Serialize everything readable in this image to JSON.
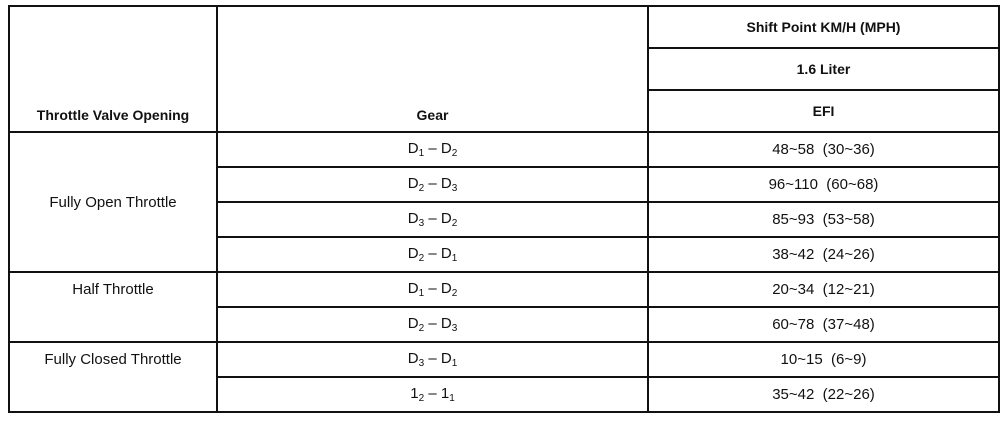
{
  "header": {
    "throttle": "Throttle Valve Opening",
    "gear": "Gear",
    "shift_point": "Shift Point KM/H (MPH)",
    "engine": "1.6 Liter",
    "system": "EFI"
  },
  "groups": [
    {
      "label": "Fully Open Throttle",
      "rows": [
        {
          "from": "D",
          "from_sub": "1",
          "to": "D",
          "to_sub": "2",
          "value": "48~58  (30~36)"
        },
        {
          "from": "D",
          "from_sub": "2",
          "to": "D",
          "to_sub": "3",
          "value": "96~110  (60~68)"
        },
        {
          "from": "D",
          "from_sub": "3",
          "to": "D",
          "to_sub": "2",
          "value": "85~93  (53~58)"
        },
        {
          "from": "D",
          "from_sub": "2",
          "to": "D",
          "to_sub": "1",
          "value": "38~42  (24~26)"
        }
      ]
    },
    {
      "label": "Half Throttle",
      "rows": [
        {
          "from": "D",
          "from_sub": "1",
          "to": "D",
          "to_sub": "2",
          "value": "20~34  (12~21)"
        },
        {
          "from": "D",
          "from_sub": "2",
          "to": "D",
          "to_sub": "3",
          "value": "60~78  (37~48)"
        }
      ]
    },
    {
      "label": "Fully Closed Throttle",
      "rows": [
        {
          "from": "D",
          "from_sub": "3",
          "to": "D",
          "to_sub": "1",
          "value": "10~15  (6~9)"
        },
        {
          "from": "1",
          "from_sub": "2",
          "to": "1",
          "to_sub": "1",
          "value": "35~42  (22~26)"
        }
      ]
    }
  ]
}
